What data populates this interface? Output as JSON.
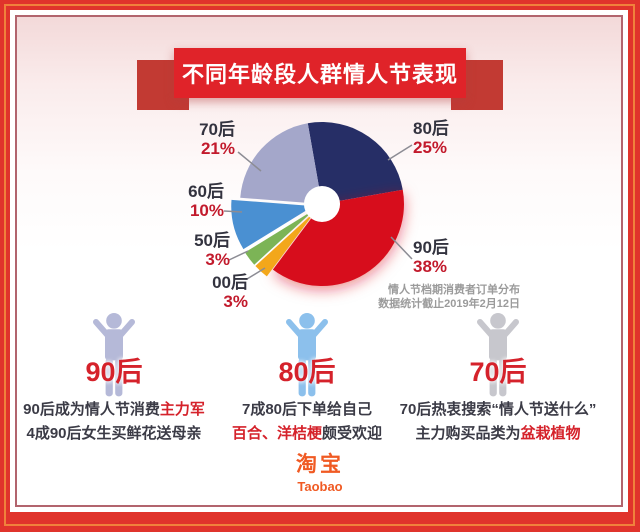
{
  "banner": {
    "title": "不同年龄段人群情人节表现"
  },
  "chart_data": {
    "type": "pie",
    "donut": true,
    "hole_radius_ratio": 0.22,
    "start_angle_deg": -10,
    "direction": "clockwise",
    "title": "情人节档期消费者订单分布",
    "subtitle": "数据统计截止2019年2月12日",
    "legend_position": "labels-around",
    "segments": [
      {
        "label": "80后",
        "pct": "25%",
        "value": 25,
        "color": "#262e66",
        "exploded": false
      },
      {
        "label": "90后",
        "pct": "38%",
        "value": 38,
        "color": "#d7111f",
        "exploded": false
      },
      {
        "label": "00后",
        "pct": "3%",
        "value": 3,
        "color": "#f3a71b",
        "exploded": true
      },
      {
        "label": "50后",
        "pct": "3%",
        "value": 3,
        "color": "#7cb456",
        "exploded": true
      },
      {
        "label": "60后",
        "pct": "10%",
        "value": 10,
        "color": "#4a90d2",
        "exploded": true
      },
      {
        "label": "70后",
        "pct": "21%",
        "value": 21,
        "color": "#a4a7ca",
        "exploded": false
      }
    ]
  },
  "sections": [
    {
      "heading": "90后",
      "icon": "person-cheer",
      "icon_color": "#b5b9d8",
      "line1_text": "90后成为情人节消费",
      "line1_highlight": "主力军",
      "line2_text": "4成90后女生买鲜花送母亲"
    },
    {
      "heading": "80后",
      "icon": "person-cheer",
      "icon_color": "#8cc0ec",
      "line1_text": "7成80后下单给自己",
      "line2_highlight": "百合、洋桔梗",
      "line2_text": "颇受欢迎"
    },
    {
      "heading": "70后",
      "icon": "person-cheer",
      "icon_color": "#c7c7cd",
      "line1_text": "70后热衷搜索“情人节送什么”",
      "line2_text": "主力购买品类为",
      "line2_highlight": "盆栽植物"
    }
  ],
  "footer": {
    "logo_cn": "淘宝",
    "logo_en": "Taobao"
  },
  "colors": {
    "accent_red": "#d5222b",
    "pct_red": "#c21a2c",
    "label_dark": "#33333f",
    "caption_gray": "#9b9b9b",
    "logo_orange": "#f05a23"
  }
}
